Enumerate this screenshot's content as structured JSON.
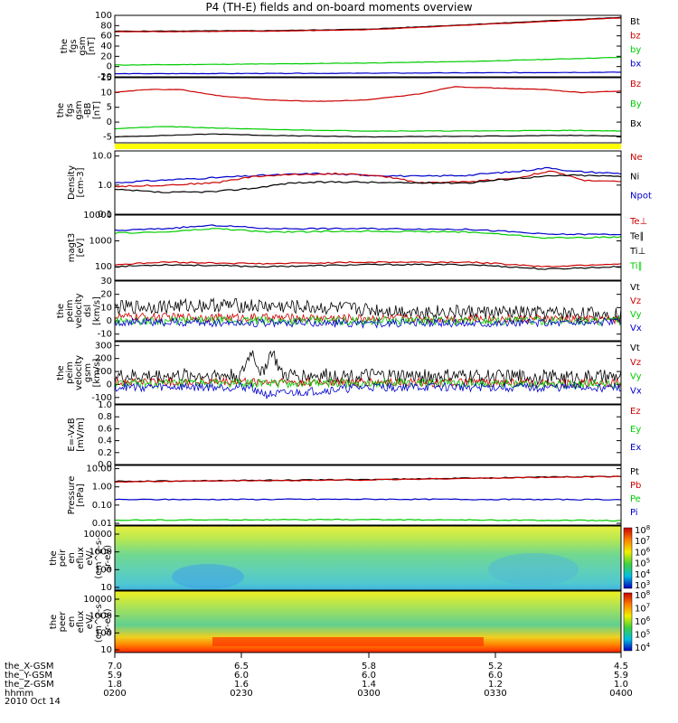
{
  "title": "P4 (TH-E) fields and on-board moments overview",
  "date_label": "2010 Oct 14",
  "colors": {
    "black": "#000000",
    "red": "#cc0000",
    "green": "#00cc00",
    "blue": "#0000cc",
    "yellow": "#ffff00"
  },
  "chart_data": [
    {
      "type": "line",
      "ylabel": [
        "the",
        "fgs",
        "gsm",
        "[nT]"
      ],
      "ylim": [
        -20,
        100
      ],
      "yticks": [
        "100",
        "80",
        "60",
        "40",
        "20",
        "0",
        "-20"
      ],
      "legend": [
        {
          "name": "Bt",
          "color": "black"
        },
        {
          "name": "bz",
          "color": "red"
        },
        {
          "name": "by",
          "color": "green"
        },
        {
          "name": "bx",
          "color": "blue"
        }
      ],
      "series": [
        {
          "name": "Bt",
          "color": "black",
          "x": [
            0,
            0.3,
            0.5,
            0.7,
            1
          ],
          "y": [
            69,
            70,
            73,
            82,
            96
          ]
        },
        {
          "name": "bz",
          "color": "red",
          "x": [
            0,
            0.3,
            0.5,
            0.7,
            1
          ],
          "y": [
            68,
            69,
            72,
            81,
            95
          ]
        },
        {
          "name": "by",
          "color": "green",
          "x": [
            0,
            0.3,
            0.5,
            0.7,
            1
          ],
          "y": [
            3,
            5,
            7,
            10,
            18
          ]
        },
        {
          "name": "bx",
          "color": "blue",
          "x": [
            0,
            0.5,
            1
          ],
          "y": [
            -14,
            -13,
            -11
          ]
        }
      ]
    },
    {
      "type": "line",
      "ylabel": [
        "the",
        "fgs",
        "gsm",
        "-BB",
        "[nT]"
      ],
      "ylim": [
        -7,
        15
      ],
      "yticks": [
        "15",
        "10",
        "5",
        "0",
        "-5"
      ],
      "legend": [
        {
          "name": "Bz",
          "color": "red"
        },
        {
          "name": "By",
          "color": "green"
        },
        {
          "name": "Bx",
          "color": "black"
        }
      ],
      "series": [
        {
          "name": "Bz",
          "color": "red",
          "x": [
            0,
            0.06,
            0.13,
            0.2,
            0.3,
            0.4,
            0.5,
            0.6,
            0.67,
            0.75,
            0.85,
            0.92,
            1
          ],
          "y": [
            10,
            11,
            11,
            9,
            7.5,
            7,
            7.5,
            9.5,
            12,
            11.5,
            11,
            10,
            10.5
          ]
        },
        {
          "name": "By",
          "color": "green",
          "x": [
            0,
            0.1,
            0.2,
            0.3,
            0.5,
            0.7,
            0.9,
            1
          ],
          "y": [
            -2.2,
            -1.5,
            -2,
            -2.5,
            -3,
            -3,
            -2.8,
            -3
          ]
        },
        {
          "name": "Bx",
          "color": "black",
          "x": [
            0,
            0.1,
            0.2,
            0.3,
            0.5,
            0.7,
            0.9,
            1
          ],
          "y": [
            -5,
            -4.5,
            -4,
            -4.5,
            -5,
            -4.8,
            -4.5,
            -4.7
          ]
        }
      ]
    },
    {
      "type": "line",
      "scale": "log",
      "ylabel": [
        "Density",
        "[cm-3]"
      ],
      "ylim": [
        0.1,
        15
      ],
      "yticks": [
        "10.0",
        "1.0",
        "0.1"
      ],
      "legend": [
        {
          "name": "Ne",
          "color": "red"
        },
        {
          "name": "Ni",
          "color": "black"
        },
        {
          "name": "Npot",
          "color": "blue"
        }
      ],
      "series": [
        {
          "name": "Npot",
          "color": "blue",
          "x": [
            0,
            0.1,
            0.2,
            0.3,
            0.4,
            0.5,
            0.6,
            0.7,
            0.8,
            0.86,
            0.9,
            1
          ],
          "y": [
            1.2,
            1.5,
            1.8,
            2.2,
            2.5,
            2.2,
            2,
            2.2,
            3,
            4,
            3,
            2.5
          ]
        },
        {
          "name": "Ne",
          "color": "red",
          "x": [
            0,
            0.1,
            0.2,
            0.28,
            0.35,
            0.45,
            0.55,
            0.6,
            0.7,
            0.8,
            0.86,
            0.92,
            1
          ],
          "y": [
            0.9,
            1,
            1.2,
            2,
            2.3,
            2.5,
            1.8,
            1.2,
            1.3,
            1.8,
            3,
            1.5,
            1.3
          ]
        },
        {
          "name": "Ni",
          "color": "black",
          "x": [
            0,
            0.1,
            0.2,
            0.28,
            0.35,
            0.45,
            0.55,
            0.7,
            0.85,
            0.9,
            1
          ],
          "y": [
            0.7,
            0.55,
            0.6,
            0.8,
            1.2,
            1.3,
            1.2,
            1.2,
            2,
            2.2,
            2
          ]
        }
      ]
    },
    {
      "type": "line",
      "scale": "log",
      "ylabel": [
        "magt3",
        "[eV]"
      ],
      "ylim": [
        30,
        10000
      ],
      "yticks": [
        "10000",
        "1000",
        "100"
      ],
      "legend": [
        {
          "name": "Te⊥",
          "color": "red"
        },
        {
          "name": "Te∥",
          "color": "black"
        },
        {
          "name": "Ti⊥",
          "color": "black"
        },
        {
          "name": "Ti∥",
          "color": "green"
        }
      ],
      "series": [
        {
          "name": "Ti⊥",
          "color": "blue",
          "x": [
            0,
            0.1,
            0.2,
            0.3,
            0.5,
            0.7,
            0.85,
            1
          ],
          "y": [
            2500,
            3000,
            4000,
            3000,
            3000,
            2800,
            1800,
            1800
          ]
        },
        {
          "name": "Ti∥",
          "color": "green",
          "x": [
            0,
            0.1,
            0.2,
            0.3,
            0.5,
            0.7,
            0.85,
            1
          ],
          "y": [
            2000,
            2200,
            3000,
            2200,
            2400,
            2200,
            1300,
            1400
          ]
        },
        {
          "name": "Te⊥",
          "color": "red",
          "x": [
            0,
            0.1,
            0.2,
            0.3,
            0.5,
            0.7,
            0.85,
            1
          ],
          "y": [
            120,
            150,
            140,
            130,
            150,
            150,
            100,
            130
          ]
        },
        {
          "name": "Te∥",
          "color": "black",
          "x": [
            0,
            0.1,
            0.2,
            0.3,
            0.5,
            0.7,
            0.85,
            1
          ],
          "y": [
            100,
            120,
            110,
            100,
            120,
            120,
            80,
            100
          ]
        }
      ]
    },
    {
      "type": "line",
      "noisy": true,
      "ylabel": [
        "the",
        "peim",
        "velocity",
        "dsl",
        "[km/s]"
      ],
      "ylim": [
        -15,
        30
      ],
      "yticks": [
        "30",
        "20",
        "10",
        "0",
        "-10"
      ],
      "legend": [
        {
          "name": "Vt",
          "color": "black"
        },
        {
          "name": "Vz",
          "color": "red"
        },
        {
          "name": "Vy",
          "color": "green"
        },
        {
          "name": "Vx",
          "color": "blue"
        }
      ],
      "series": [
        {
          "name": "Vt",
          "color": "black",
          "x": [
            0,
            0.2,
            0.4,
            0.6,
            0.8,
            1
          ],
          "y": [
            10,
            12,
            10,
            7,
            6,
            5
          ]
        },
        {
          "name": "Vz",
          "color": "red",
          "x": [
            0,
            0.5,
            1
          ],
          "y": [
            3,
            2,
            1
          ]
        },
        {
          "name": "Vy",
          "color": "green",
          "x": [
            0,
            0.5,
            1
          ],
          "y": [
            0,
            0,
            0
          ]
        },
        {
          "name": "Vx",
          "color": "blue",
          "x": [
            0,
            0.5,
            1
          ],
          "y": [
            -1,
            -2,
            -1
          ]
        }
      ]
    },
    {
      "type": "line",
      "noisy": true,
      "ylabel": [
        "the",
        "peim",
        "velocity",
        "gsm",
        "[km/s]"
      ],
      "ylim": [
        -150,
        330
      ],
      "yticks": [
        "300",
        "200",
        "100",
        "0",
        "-100"
      ],
      "legend": [
        {
          "name": "Vt",
          "color": "black"
        },
        {
          "name": "Vz",
          "color": "red"
        },
        {
          "name": "Vy",
          "color": "green"
        },
        {
          "name": "Vx",
          "color": "blue"
        }
      ],
      "series": [
        {
          "name": "Vt",
          "color": "black",
          "x": [
            0,
            0.2,
            0.25,
            0.27,
            0.29,
            0.31,
            0.33,
            0.5,
            1
          ],
          "y": [
            60,
            70,
            70,
            260,
            80,
            260,
            70,
            65,
            55
          ]
        },
        {
          "name": "Vz",
          "color": "red",
          "x": [
            0,
            0.5,
            1
          ],
          "y": [
            20,
            15,
            10
          ]
        },
        {
          "name": "Vy",
          "color": "green",
          "x": [
            0,
            0.5,
            1
          ],
          "y": [
            5,
            10,
            5
          ]
        },
        {
          "name": "Vx",
          "color": "blue",
          "x": [
            0,
            0.27,
            0.3,
            0.5,
            1
          ],
          "y": [
            -20,
            -20,
            -80,
            -20,
            -25
          ]
        }
      ]
    },
    {
      "type": "line",
      "ylabel": [
        "E=-VxB",
        "[mV/m]"
      ],
      "ylim": [
        0,
        1
      ],
      "yticks": [
        "1.0",
        "0.8",
        "0.6",
        "0.4",
        "0.2",
        "0.0"
      ],
      "legend": [
        {
          "name": "Ez",
          "color": "red"
        },
        {
          "name": "Ey",
          "color": "green"
        },
        {
          "name": "Ex",
          "color": "blue"
        }
      ],
      "series": []
    },
    {
      "type": "line",
      "scale": "log",
      "ylabel": [
        "Pressure",
        "[nPa]"
      ],
      "ylim": [
        0.008,
        15
      ],
      "yticks": [
        "10.00",
        "1.00",
        "0.10",
        "0.01"
      ],
      "legend": [
        {
          "name": "Pt",
          "color": "black"
        },
        {
          "name": "Pb",
          "color": "red"
        },
        {
          "name": "Pe",
          "color": "green"
        },
        {
          "name": "Pi",
          "color": "blue"
        }
      ],
      "series": [
        {
          "name": "Pt",
          "color": "black",
          "x": [
            0,
            0.5,
            1
          ],
          "y": [
            2.0,
            2.5,
            3.8
          ]
        },
        {
          "name": "Pb",
          "color": "red",
          "x": [
            0,
            0.5,
            1
          ],
          "y": [
            1.9,
            2.4,
            3.7
          ]
        },
        {
          "name": "Pi",
          "color": "blue",
          "x": [
            0,
            0.5,
            1
          ],
          "y": [
            0.2,
            0.21,
            0.2
          ]
        },
        {
          "name": "Pe",
          "color": "green",
          "x": [
            0,
            0.5,
            1
          ],
          "y": [
            0.015,
            0.016,
            0.014
          ]
        }
      ]
    },
    {
      "type": "heatmap",
      "ylabel": [
        "the",
        "peir",
        "en",
        "eflux",
        "eV/",
        "(cm^2-s-",
        "sr-eV)"
      ],
      "yticks": [
        "10000",
        "1000",
        "100",
        "10"
      ],
      "colorbar_ticks": [
        "10^8",
        "10^7",
        "10^6",
        "10^5",
        "10^4",
        "10^3"
      ]
    },
    {
      "type": "heatmap",
      "ylabel": [
        "the",
        "peer",
        "en",
        "eflux",
        "eV/",
        "(cm^2-s-",
        "sr-eV)"
      ],
      "yticks": [
        "10000",
        "1000",
        "100",
        "10"
      ],
      "colorbar_ticks": [
        "10^8",
        "10^7",
        "10^6",
        "10^5",
        "10^4"
      ]
    }
  ],
  "ephemeris": {
    "labels": [
      "the_X-GSM",
      "the_Y-GSM",
      "the_Z-GSM",
      "hhmm"
    ],
    "columns": [
      {
        "x": "7.0",
        "y": "5.9",
        "z": "1.8",
        "t": "0200"
      },
      {
        "x": "6.5",
        "y": "6.0",
        "z": "1.6",
        "t": "0230"
      },
      {
        "x": "5.8",
        "y": "6.0",
        "z": "1.4",
        "t": "0300"
      },
      {
        "x": "5.2",
        "y": "6.0",
        "z": "1.2",
        "t": "0330"
      },
      {
        "x": "4.5",
        "y": "5.9",
        "z": "1.0",
        "t": "0400"
      }
    ]
  }
}
